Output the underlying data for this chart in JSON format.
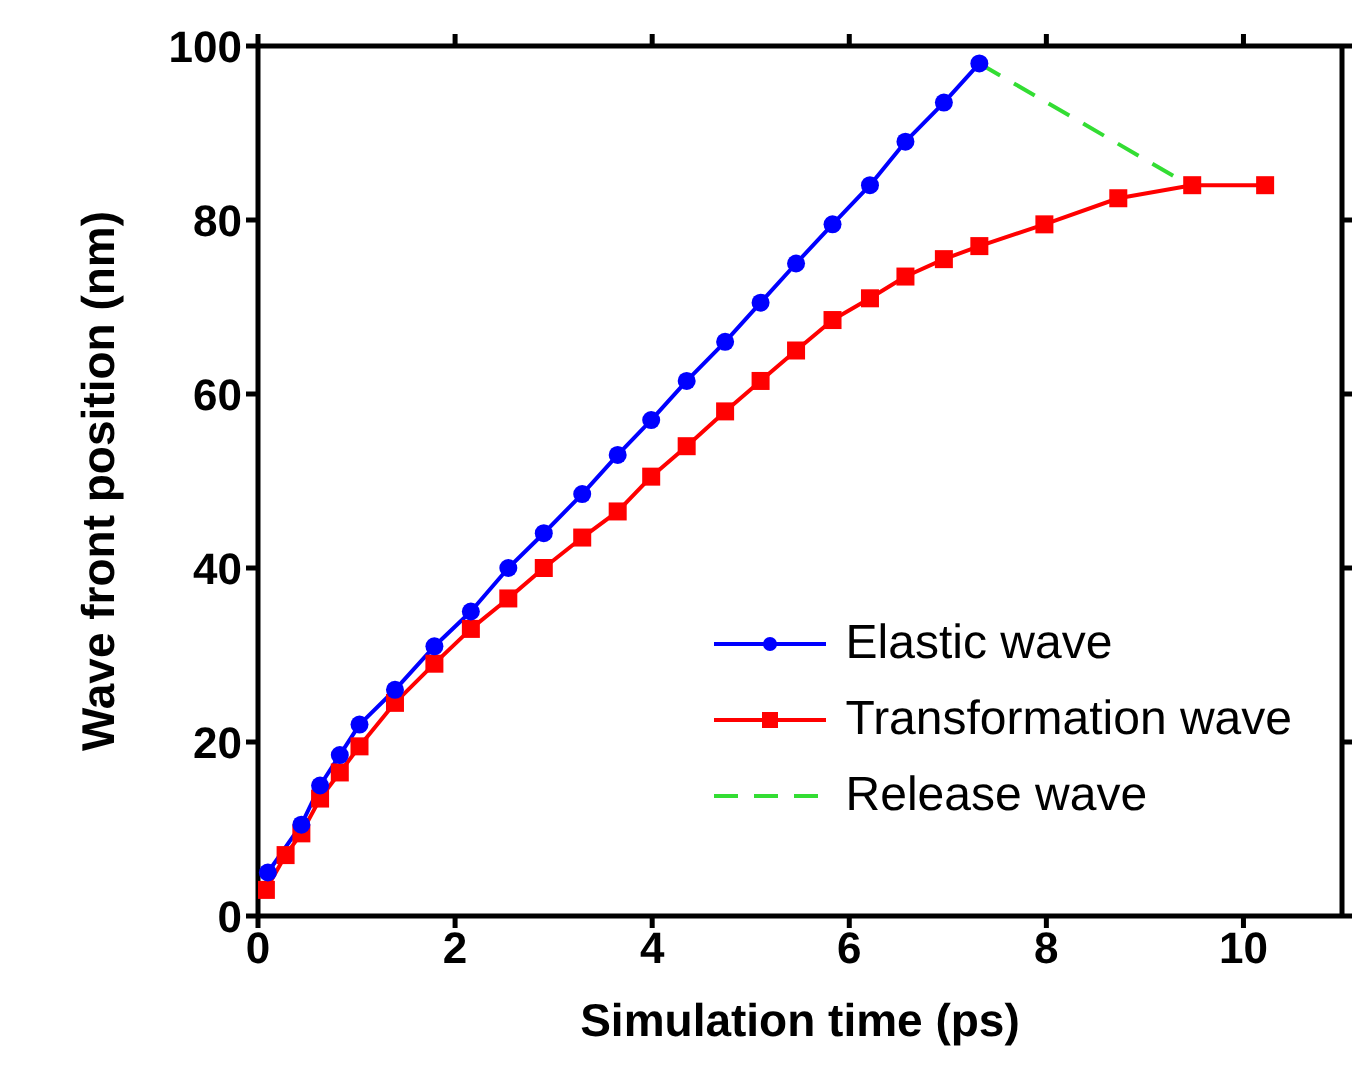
{
  "chart_data": {
    "type": "line",
    "xlabel": "Simulation time (ps)",
    "ylabel": "Wave front position (nm)",
    "xlim": [
      0,
      11
    ],
    "xticks": [
      0,
      2,
      4,
      6,
      8,
      10
    ],
    "ylim": [
      0,
      100
    ],
    "yticks": [
      0,
      20,
      40,
      60,
      80,
      100
    ],
    "legend": "bottom right",
    "series": [
      {
        "name": "Elastic wave",
        "color": "#0000ff",
        "marker": "circle",
        "line_style": "solid",
        "x": [
          0.1,
          0.44,
          0.63,
          0.83,
          1.03,
          1.39,
          1.79,
          2.16,
          2.54,
          2.9,
          3.29,
          3.65,
          3.99,
          4.35,
          4.74,
          5.1,
          5.46,
          5.83,
          6.21,
          6.57,
          6.96,
          7.32
        ],
        "values": [
          5,
          10.5,
          15,
          18.5,
          22,
          26,
          31,
          35,
          40,
          44,
          48.5,
          53,
          57,
          61.5,
          66,
          70.5,
          75,
          79.5,
          84,
          89,
          93.5,
          98
        ]
      },
      {
        "name": "Transformation wave",
        "color": "#ff0000",
        "marker": "square",
        "line_style": "solid",
        "x": [
          0.08,
          0.28,
          0.44,
          0.63,
          0.83,
          1.03,
          1.39,
          1.79,
          2.16,
          2.54,
          2.9,
          3.29,
          3.65,
          3.99,
          4.35,
          4.74,
          5.1,
          5.46,
          5.83,
          6.21,
          6.57,
          6.96,
          7.32,
          7.98,
          8.73,
          9.48,
          10.22
        ],
        "values": [
          3,
          7,
          9.5,
          13.5,
          16.5,
          19.5,
          24.5,
          29,
          33,
          36.5,
          40,
          43.5,
          46.5,
          50.5,
          54,
          58,
          61.5,
          65,
          68.5,
          71,
          73.5,
          75.5,
          77,
          79.5,
          82.5,
          84,
          84
        ]
      },
      {
        "name": "Release wave",
        "color": "#33dd33",
        "marker": "none",
        "line_style": "dashed",
        "x": [
          7.32,
          9.3
        ],
        "values": [
          98,
          85
        ]
      }
    ]
  }
}
